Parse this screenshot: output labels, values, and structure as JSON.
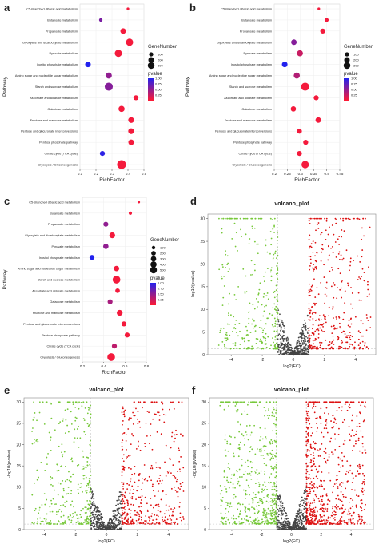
{
  "colors": {
    "bubble_low_p": "#ff1a33",
    "bubble_high_p": "#2222ee",
    "volcano_up": "#dd1111",
    "volcano_down": "#77c83a",
    "volcano_ns": "#444444",
    "guide": "#bbbbbb"
  },
  "pathways": [
    "C5-Branched dibasic acid metabolism",
    "Butanoate metabolism",
    "Propanoate metabolism",
    "Glyoxylate and dicarboxylate metabolism",
    "Pyruvate metabolism",
    "Inositol phosphate metabolism",
    "Amino sugar and nucleotide sugar metabolism",
    "Starch and sucrose metabolism",
    "Ascorbate and aldarate metabolism",
    "Galactose metabolism",
    "Fructose and mannose metabolism",
    "Pentose and glucuronate interconversions",
    "Pentose phosphate pathway",
    "Citrate cycle (TCA cycle)",
    "Glycolysis / Gluconeogenesis"
  ],
  "chart_data": [
    {
      "panel": "a",
      "type": "scatter",
      "xlabel": "RichFactor",
      "ylabel": "Pathway",
      "xlim": [
        0.1,
        0.5
      ],
      "xticks": [
        0.1,
        0.2,
        0.3,
        0.4,
        0.5
      ],
      "size_legend": {
        "title": "GeneNumber",
        "levels": [
          100,
          200,
          300
        ]
      },
      "color_legend": {
        "title": "pvalue",
        "ticks": [
          1.0,
          0.75,
          0.5,
          0.25
        ],
        "tick_labels": [
          "1.00",
          "0.75",
          "0.50",
          "0.25"
        ],
        "min": 0,
        "max": 1.0
      },
      "points": [
        {
          "pathway": "C5-Branched dibasic acid metabolism",
          "richfactor": 0.4,
          "genes": 8,
          "pvalue": 0.05
        },
        {
          "pathway": "Butanoate metabolism",
          "richfactor": 0.23,
          "genes": 20,
          "pvalue": 0.6
        },
        {
          "pathway": "Propanoate metabolism",
          "richfactor": 0.37,
          "genes": 80,
          "pvalue": 0.05
        },
        {
          "pathway": "Glyoxylate and dicarboxylate metabolism",
          "richfactor": 0.41,
          "genes": 150,
          "pvalue": 0.05
        },
        {
          "pathway": "Pyruvate metabolism",
          "richfactor": 0.34,
          "genes": 150,
          "pvalue": 0.05
        },
        {
          "pathway": "Inositol phosphate metabolism",
          "richfactor": 0.15,
          "genes": 80,
          "pvalue": 1.0
        },
        {
          "pathway": "Amino sugar and nucleotide sugar metabolism",
          "richfactor": 0.28,
          "genes": 100,
          "pvalue": 0.5
        },
        {
          "pathway": "Starch and sucrose metabolism",
          "richfactor": 0.28,
          "genes": 200,
          "pvalue": 0.55
        },
        {
          "pathway": "Ascorbate and aldarate metabolism",
          "richfactor": 0.45,
          "genes": 60,
          "pvalue": 0.05
        },
        {
          "pathway": "Galactose metabolism",
          "richfactor": 0.36,
          "genes": 100,
          "pvalue": 0.05
        },
        {
          "pathway": "Fructose and mannose metabolism",
          "richfactor": 0.42,
          "genes": 90,
          "pvalue": 0.05
        },
        {
          "pathway": "Pentose and glucuronate interconversions",
          "richfactor": 0.42,
          "genes": 90,
          "pvalue": 0.05
        },
        {
          "pathway": "Pentose phosphate pathway",
          "richfactor": 0.42,
          "genes": 80,
          "pvalue": 0.05
        },
        {
          "pathway": "Citrate cycle (TCA cycle)",
          "richfactor": 0.24,
          "genes": 60,
          "pvalue": 0.95
        },
        {
          "pathway": "Glycolysis / Gluconeogenesis",
          "richfactor": 0.36,
          "genes": 250,
          "pvalue": 0.05
        }
      ]
    },
    {
      "panel": "b",
      "type": "scatter",
      "xlabel": "RichFactor",
      "ylabel": "Pathway",
      "xlim": [
        0.2,
        0.45
      ],
      "xticks": [
        0.2,
        0.25,
        0.3,
        0.35,
        0.4,
        0.45
      ],
      "size_legend": {
        "title": "GeneNumber",
        "levels": [
          100,
          200,
          300
        ]
      },
      "color_legend": {
        "title": "pvalue",
        "ticks": [
          1.0,
          0.75,
          0.5,
          0.25
        ],
        "tick_labels": [
          "1.00",
          "0.75",
          "0.50",
          "0.25"
        ],
        "min": 0,
        "max": 1.0
      },
      "points": [
        {
          "pathway": "C5-Branched dibasic acid metabolism",
          "richfactor": 0.37,
          "genes": 8,
          "pvalue": 0.05
        },
        {
          "pathway": "Butanoate metabolism",
          "richfactor": 0.4,
          "genes": 30,
          "pvalue": 0.05
        },
        {
          "pathway": "Propanoate metabolism",
          "richfactor": 0.385,
          "genes": 60,
          "pvalue": 0.05
        },
        {
          "pathway": "Glyoxylate and dicarboxylate metabolism",
          "richfactor": 0.275,
          "genes": 80,
          "pvalue": 0.55
        },
        {
          "pathway": "Pyruvate metabolism",
          "richfactor": 0.298,
          "genes": 100,
          "pvalue": 0.25
        },
        {
          "pathway": "Inositol phosphate metabolism",
          "richfactor": 0.24,
          "genes": 80,
          "pvalue": 1.0
        },
        {
          "pathway": "Amino sugar and nucleotide sugar metabolism",
          "richfactor": 0.286,
          "genes": 100,
          "pvalue": 0.35
        },
        {
          "pathway": "Starch and sucrose metabolism",
          "richfactor": 0.318,
          "genes": 200,
          "pvalue": 0.05
        },
        {
          "pathway": "Ascorbate and aldarate metabolism",
          "richfactor": 0.36,
          "genes": 60,
          "pvalue": 0.05
        },
        {
          "pathway": "Galactose metabolism",
          "richfactor": 0.273,
          "genes": 70,
          "pvalue": 0.05
        },
        {
          "pathway": "Fructose and mannose metabolism",
          "richfactor": 0.368,
          "genes": 80,
          "pvalue": 0.05
        },
        {
          "pathway": "Pentose and glucuronate interconversions",
          "richfactor": 0.296,
          "genes": 60,
          "pvalue": 0.05
        },
        {
          "pathway": "Pentose phosphate pathway",
          "richfactor": 0.32,
          "genes": 60,
          "pvalue": 0.05
        },
        {
          "pathway": "Citrate cycle (TCA cycle)",
          "richfactor": 0.296,
          "genes": 60,
          "pvalue": 0.05
        },
        {
          "pathway": "Glycolysis / Gluconeogenesis",
          "richfactor": 0.318,
          "genes": 160,
          "pvalue": 0.05
        }
      ]
    },
    {
      "panel": "c",
      "type": "scatter",
      "xlabel": "RichFactor",
      "ylabel": "Pathway",
      "xlim": [
        0.2,
        0.8
      ],
      "xticks": [
        0.2,
        0.4,
        0.6,
        0.8
      ],
      "size_legend": {
        "title": "GeneNumber",
        "levels": [
          100,
          200,
          300,
          400,
          500
        ]
      },
      "color_legend": {
        "title": "pvalue",
        "ticks": [
          1.0,
          0.75,
          0.5,
          0.25
        ],
        "tick_labels": [
          "1.00",
          "0.75",
          "0.50",
          "0.25"
        ],
        "min": 0,
        "max": 1.0
      },
      "points": [
        {
          "pathway": "C5-Branched dibasic acid metabolism",
          "richfactor": 0.73,
          "genes": 8,
          "pvalue": 0.05
        },
        {
          "pathway": "Butanoate metabolism",
          "richfactor": 0.65,
          "genes": 30,
          "pvalue": 0.05
        },
        {
          "pathway": "Propanoate metabolism",
          "richfactor": 0.42,
          "genes": 100,
          "pvalue": 0.5
        },
        {
          "pathway": "Glyoxylate and dicarboxylate metabolism",
          "richfactor": 0.48,
          "genes": 150,
          "pvalue": 0.05
        },
        {
          "pathway": "Pyruvate metabolism",
          "richfactor": 0.42,
          "genes": 120,
          "pvalue": 0.5
        },
        {
          "pathway": "Inositol phosphate metabolism",
          "richfactor": 0.29,
          "genes": 100,
          "pvalue": 1.0
        },
        {
          "pathway": "Amino sugar and nucleotide sugar metabolism",
          "richfactor": 0.52,
          "genes": 120,
          "pvalue": 0.05
        },
        {
          "pathway": "Starch and sucrose metabolism",
          "richfactor": 0.52,
          "genes": 300,
          "pvalue": 0.05
        },
        {
          "pathway": "Ascorbate and aldarate metabolism",
          "richfactor": 0.53,
          "genes": 80,
          "pvalue": 0.05
        },
        {
          "pathway": "Galactose metabolism",
          "richfactor": 0.46,
          "genes": 100,
          "pvalue": 0.4
        },
        {
          "pathway": "Fructose and mannose metabolism",
          "richfactor": 0.55,
          "genes": 150,
          "pvalue": 0.05
        },
        {
          "pathway": "Pentose and glucuronate interconversions",
          "richfactor": 0.59,
          "genes": 100,
          "pvalue": 0.05
        },
        {
          "pathway": "Pentose phosphate pathway",
          "richfactor": 0.62,
          "genes": 100,
          "pvalue": 0.05
        },
        {
          "pathway": "Citrate cycle (TCA cycle)",
          "richfactor": 0.5,
          "genes": 100,
          "pvalue": 0.3
        },
        {
          "pathway": "Glycolysis / Gluconeogenesis",
          "richfactor": 0.47,
          "genes": 300,
          "pvalue": 0.05
        }
      ]
    },
    {
      "panel": "d",
      "type": "scatter",
      "title": "volcano_plot",
      "xlabel": "log2(FC)",
      "ylabel": "-log10(pvalue)",
      "xlim": [
        -5.5,
        5.3
      ],
      "ylim": [
        0,
        31
      ],
      "xticks": [
        -4,
        -2,
        0,
        2,
        4
      ],
      "yticks": [
        0,
        5,
        10,
        15,
        20,
        25,
        30
      ],
      "thresholds": {
        "fc": [
          -1,
          1
        ],
        "p": 1.3
      },
      "groups": [
        {
          "class": "up",
          "count": 380,
          "y_cap_count": 30,
          "x_range": [
            1,
            5
          ]
        },
        {
          "class": "down",
          "count": 300,
          "y_cap_count": 35,
          "x_range": [
            -4.8,
            -1
          ]
        },
        {
          "class": "ns",
          "count": 380,
          "x_range": [
            -1,
            1
          ]
        }
      ]
    },
    {
      "panel": "e",
      "type": "scatter",
      "title": "volcano_plot",
      "xlabel": "log2(FC)",
      "ylabel": "-log10(pvalue)",
      "xlim": [
        -5.3,
        5.3
      ],
      "ylim": [
        0,
        31
      ],
      "xticks": [
        -4,
        -2,
        0,
        2,
        4
      ],
      "yticks": [
        0,
        5,
        10,
        15,
        20,
        25,
        30
      ],
      "thresholds": {
        "fc": [
          -1,
          1
        ],
        "p": 1.3
      },
      "groups": [
        {
          "class": "up",
          "count": 400,
          "y_cap_count": 18,
          "x_range": [
            1,
            5
          ]
        },
        {
          "class": "down",
          "count": 320,
          "y_cap_count": 20,
          "x_range": [
            -4.8,
            -1
          ]
        },
        {
          "class": "ns",
          "count": 400,
          "x_range": [
            -1,
            1
          ]
        }
      ]
    },
    {
      "panel": "f",
      "type": "scatter",
      "title": "volcano_plot",
      "xlabel": "log2(FC)",
      "ylabel": "-log10(pvalue)",
      "xlim": [
        -5.5,
        5.5
      ],
      "ylim": [
        0,
        31
      ],
      "xticks": [
        -4,
        -2,
        0,
        2,
        4
      ],
      "yticks": [
        0,
        5,
        10,
        15,
        20,
        25,
        30
      ],
      "thresholds": {
        "fc": [
          -1,
          1
        ],
        "p": 1.3
      },
      "groups": [
        {
          "class": "up",
          "count": 650,
          "y_cap_count": 55,
          "x_range": [
            1,
            5
          ]
        },
        {
          "class": "down",
          "count": 520,
          "y_cap_count": 55,
          "x_range": [
            -4.8,
            -1
          ]
        },
        {
          "class": "ns",
          "count": 420,
          "x_range": [
            -1,
            1
          ]
        }
      ]
    }
  ]
}
